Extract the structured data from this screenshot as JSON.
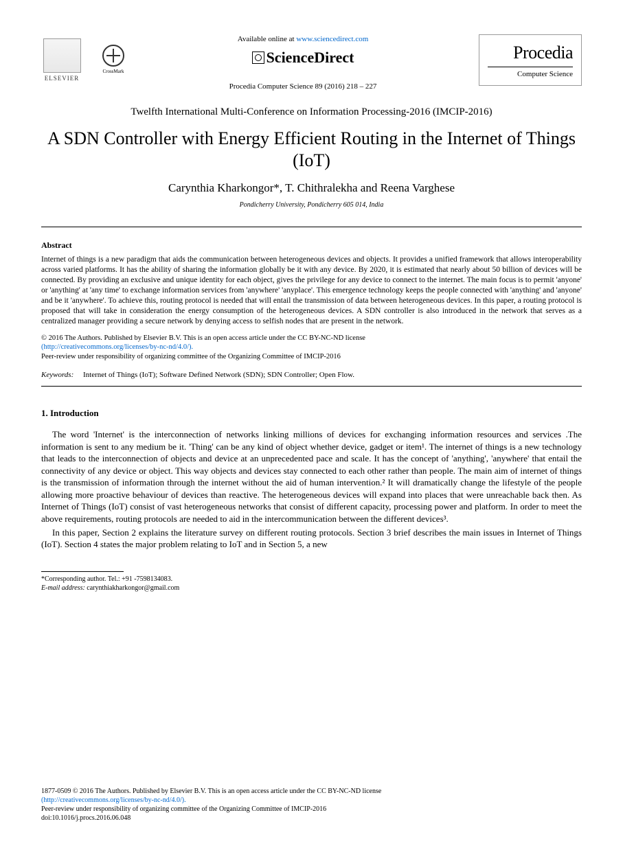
{
  "header": {
    "elsevier_label": "ELSEVIER",
    "crossmark_label": "CrossMark",
    "available_prefix": "Available online at ",
    "available_url": "www.sciencedirect.com",
    "sciencedirect_label": "ScienceDirect",
    "citation": "Procedia Computer Science 89 (2016) 218 – 227",
    "procedia_main": "Procedia",
    "procedia_sub": "Computer Science"
  },
  "conference": "Twelfth International Multi-Conference on Information Processing-2016 (IMCIP-2016)",
  "title": "A SDN Controller with Energy Efficient Routing in the Internet of Things (IoT)",
  "authors": "Carynthia Kharkongor*, T. Chithralekha and Reena Varghese",
  "affiliation": "Pondicherry University, Pondicherry 605 014, India",
  "abstract": {
    "heading": "Abstract",
    "text": "Internet of things is a new paradigm that aids the communication between heterogeneous devices and objects. It provides a unified framework that allows interoperability across varied platforms. It has the ability of sharing the information globally be it with any device. By 2020, it is estimated that nearly about 50 billion of devices will be connected. By providing an exclusive and unique identity for each object, gives the privilege for any device to connect to the internet. The main focus is to permit 'anyone' or 'anything' at 'any time' to exchange information services from 'anywhere' 'anyplace'. This emergence technology keeps the people connected with 'anything' and 'anyone' and be it 'anywhere'. To achieve this, routing protocol is needed that will entail the transmission of data between heterogeneous devices. In this paper, a routing protocol is proposed that will take in consideration the energy consumption of the heterogeneous devices. A SDN controller is also introduced in the network that serves as a centralized manager providing a secure network by denying access to selfish nodes that are present in the network."
  },
  "license": {
    "copyright": "© 2016 The Authors. Published by Elsevier B.V. This is an open access article under the CC BY-NC-ND license",
    "url_text": "(http://creativecommons.org/licenses/by-nc-nd/4.0/).",
    "peer_review": "Peer-review under responsibility of organizing committee of the Organizing Committee of IMCIP-2016"
  },
  "keywords": {
    "label": "Keywords:",
    "text": "Internet of Things (IoT); Software Defined Network (SDN); SDN Controller; Open Flow."
  },
  "section1": {
    "heading": "1. Introduction",
    "para1": "The word 'Internet' is the interconnection of networks linking millions of devices for exchanging information resources and services .The information is sent to any medium be it. 'Thing' can be any kind of object whether device, gadget or item¹. The internet of things is a new technology that leads to the interconnection of objects and device at an unprecedented pace and scale. It has the concept of 'anything', 'anywhere' that entail the connectivity of any device or object. This way objects and devices stay connected to each other rather than people. The main aim of internet of things is the transmission of information through the internet without the aid of human intervention.² It will dramatically change the lifestyle of the people allowing more proactive behaviour of devices than reactive. The heterogeneous devices will expand into places that were unreachable back then. As Internet of Things (IoT) consist of vast heterogeneous networks that consist of different capacity, processing power and platform. In order to meet the above requirements, routing protocols are needed to aid in the intercommunication between the different devices³.",
    "para2": "In this paper, Section 2 explains the literature survey on different routing protocols. Section 3 brief describes the main issues in Internet of Things (IoT). Section 4 states the major problem relating to IoT and in Section 5, a new"
  },
  "footnote": {
    "corresponding": "*Corresponding author. Tel.: +91 -7598134083.",
    "email_label": "E-mail address:",
    "email": " carynthiakharkongor@gmail.com"
  },
  "bottom": {
    "issn_line": "1877-0509 © 2016 The Authors. Published by Elsevier B.V. This is an open access article under the CC BY-NC-ND license",
    "url_text": "(http://creativecommons.org/licenses/by-nc-nd/4.0/).",
    "peer_review": "Peer-review under responsibility of organizing committee of the Organizing Committee of IMCIP-2016",
    "doi": "doi:10.1016/j.procs.2016.06.048"
  },
  "colors": {
    "link": "#0066cc",
    "text": "#000000",
    "background": "#ffffff"
  },
  "fonts": {
    "body_family": "Times New Roman",
    "title_size_pt": 20,
    "body_size_pt": 10,
    "abstract_size_pt": 9
  }
}
